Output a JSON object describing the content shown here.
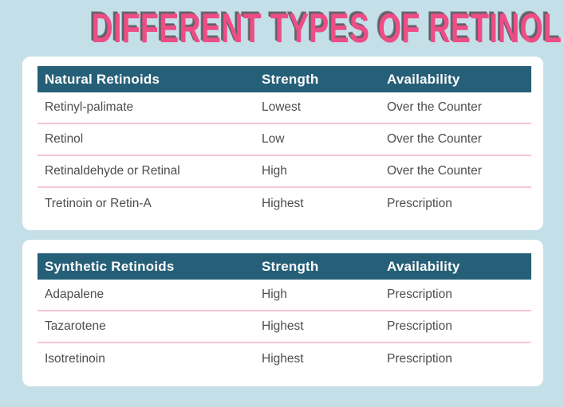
{
  "page": {
    "title": "DIFFERENT TYPES OF RETINOL",
    "background_color": "#c5dfe8",
    "title_color": "#ee4d86",
    "title_shadow_color": "#606066"
  },
  "colors": {
    "table_header_bg": "#266078",
    "table_header_text": "#fdfdfd",
    "row_text": "#4d4d4d",
    "row_divider_pink": "#f7c6d2",
    "card_bg": "#ffffff"
  },
  "tables": [
    {
      "header": {
        "name": "Natural Retinoids",
        "strength": "Strength",
        "availability": "Availability"
      },
      "rows": [
        {
          "name": "Retinyl-palimate",
          "strength": "Lowest",
          "availability": "Over the Counter"
        },
        {
          "name": "Retinol",
          "strength": "Low",
          "availability": "Over the Counter"
        },
        {
          "name": "Retinaldehyde or Retinal",
          "strength": "High",
          "availability": "Over the Counter"
        },
        {
          "name": "Tretinoin or Retin-A",
          "strength": "Highest",
          "availability": "Prescription"
        }
      ]
    },
    {
      "header": {
        "name": "Synthetic Retinoids",
        "strength": "Strength",
        "availability": "Availability"
      },
      "rows": [
        {
          "name": "Adapalene",
          "strength": "High",
          "availability": "Prescription"
        },
        {
          "name": "Tazarotene",
          "strength": "Highest",
          "availability": "Prescription"
        },
        {
          "name": "Isotretinoin",
          "strength": "Highest",
          "availability": "Prescription"
        }
      ]
    }
  ]
}
